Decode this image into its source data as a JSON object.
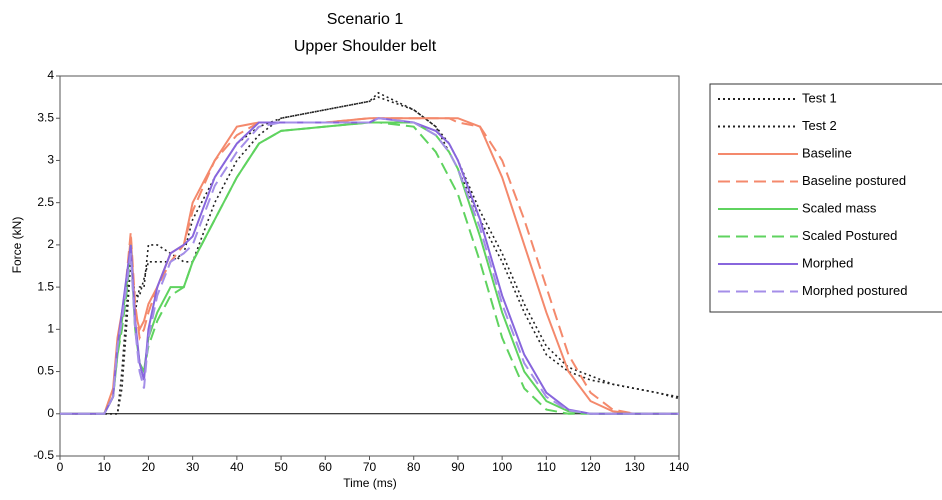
{
  "chart_data": {
    "type": "line",
    "title": "Scenario 1",
    "subtitle": "Upper Shoulder belt",
    "x_label": "Time (ms)",
    "y_label": "Force (kN)",
    "x": [
      0,
      10,
      12,
      13,
      14,
      15,
      16,
      17,
      18,
      19,
      20,
      22,
      25,
      28,
      30,
      35,
      40,
      45,
      50,
      60,
      70,
      72,
      80,
      85,
      88,
      90,
      95,
      100,
      105,
      110,
      115,
      120,
      125,
      130,
      135,
      140
    ],
    "series": [
      {
        "name": "Test 1",
        "color": "#222222",
        "style": "dotted",
        "values": [
          0,
          0,
          0,
          0,
          0.5,
          1.2,
          2.0,
          1.2,
          1.5,
          1.5,
          2.0,
          2.0,
          1.9,
          1.8,
          1.8,
          2.5,
          3.0,
          3.3,
          3.5,
          3.6,
          3.7,
          3.8,
          3.6,
          3.4,
          3.1,
          2.9,
          2.3,
          1.8,
          1.2,
          0.7,
          0.5,
          0.4,
          0.35,
          0.3,
          0.25,
          0.2
        ]
      },
      {
        "name": "Test 2",
        "color": "#222222",
        "style": "dotted",
        "values": [
          0,
          0,
          0,
          0,
          0.3,
          1.0,
          1.8,
          1.4,
          1.4,
          1.6,
          1.8,
          1.8,
          1.8,
          1.9,
          2.3,
          2.8,
          3.2,
          3.4,
          3.5,
          3.6,
          3.7,
          3.75,
          3.6,
          3.4,
          3.2,
          3.0,
          2.4,
          1.9,
          1.3,
          0.8,
          0.55,
          0.45,
          0.35,
          0.3,
          0.25,
          0.18
        ]
      },
      {
        "name": "Baseline",
        "color": "#f4896c",
        "style": "solid",
        "values": [
          0,
          0,
          0.3,
          0.9,
          1.2,
          1.5,
          2.1,
          1.2,
          1.0,
          1.1,
          1.3,
          1.5,
          1.9,
          2.0,
          2.5,
          3.0,
          3.4,
          3.45,
          3.45,
          3.45,
          3.5,
          3.5,
          3.5,
          3.5,
          3.5,
          3.5,
          3.4,
          2.8,
          2.0,
          1.2,
          0.5,
          0.15,
          0.03,
          0,
          0,
          0
        ]
      },
      {
        "name": "Baseline postured",
        "color": "#f4896c",
        "style": "dashed",
        "values": [
          0,
          0,
          0.2,
          0.8,
          1.1,
          1.6,
          2.15,
          1.3,
          0.9,
          1.0,
          1.2,
          1.5,
          1.8,
          2.0,
          2.4,
          3.0,
          3.3,
          3.45,
          3.45,
          3.45,
          3.5,
          3.5,
          3.5,
          3.5,
          3.5,
          3.45,
          3.4,
          3.0,
          2.3,
          1.5,
          0.7,
          0.25,
          0.05,
          0,
          0,
          0
        ]
      },
      {
        "name": "Scaled mass",
        "color": "#5fd35f",
        "style": "solid",
        "values": [
          0,
          0,
          0.2,
          0.7,
          1.1,
          1.5,
          2.0,
          1.0,
          0.6,
          0.5,
          0.9,
          1.2,
          1.5,
          1.5,
          1.8,
          2.3,
          2.8,
          3.2,
          3.35,
          3.4,
          3.45,
          3.45,
          3.45,
          3.3,
          3.1,
          2.9,
          2.1,
          1.2,
          0.5,
          0.15,
          0.03,
          0,
          0,
          0,
          0,
          0
        ]
      },
      {
        "name": "Scaled Postured",
        "color": "#5fd35f",
        "style": "dashed",
        "values": [
          0,
          0,
          0.2,
          0.7,
          1.0,
          1.4,
          1.9,
          1.0,
          0.6,
          0.5,
          0.8,
          1.1,
          1.4,
          1.5,
          1.8,
          2.3,
          2.8,
          3.2,
          3.35,
          3.4,
          3.45,
          3.45,
          3.4,
          3.1,
          2.8,
          2.6,
          1.8,
          0.9,
          0.3,
          0.05,
          0,
          0,
          0,
          0,
          0,
          0
        ]
      },
      {
        "name": "Morphed",
        "color": "#8866dd",
        "style": "solid",
        "values": [
          0,
          0,
          0.2,
          0.8,
          1.2,
          1.6,
          2.0,
          1.1,
          0.6,
          0.4,
          1.0,
          1.5,
          1.9,
          2.0,
          2.1,
          2.8,
          3.2,
          3.45,
          3.45,
          3.45,
          3.45,
          3.5,
          3.45,
          3.35,
          3.2,
          3.0,
          2.3,
          1.4,
          0.7,
          0.25,
          0.05,
          0,
          0,
          0,
          0,
          0
        ]
      },
      {
        "name": "Morphed postured",
        "color": "#a48ee8",
        "style": "dashed",
        "values": [
          0,
          0,
          0.2,
          0.8,
          1.1,
          1.5,
          1.9,
          1.0,
          0.5,
          0.3,
          0.9,
          1.4,
          1.8,
          1.9,
          2.0,
          2.7,
          3.1,
          3.4,
          3.45,
          3.45,
          3.45,
          3.5,
          3.45,
          3.3,
          3.1,
          2.9,
          2.2,
          1.3,
          0.6,
          0.2,
          0.04,
          0,
          0,
          0,
          0,
          0
        ]
      }
    ],
    "xlim": [
      0,
      140
    ],
    "xticks": [
      0,
      10,
      20,
      30,
      40,
      50,
      60,
      70,
      80,
      90,
      100,
      110,
      120,
      130,
      140
    ],
    "ylim": [
      -0.5,
      4
    ],
    "yticks": [
      -0.5,
      0,
      0.5,
      1,
      1.5,
      2,
      2.5,
      3,
      3.5,
      4
    ],
    "legend": "right"
  }
}
